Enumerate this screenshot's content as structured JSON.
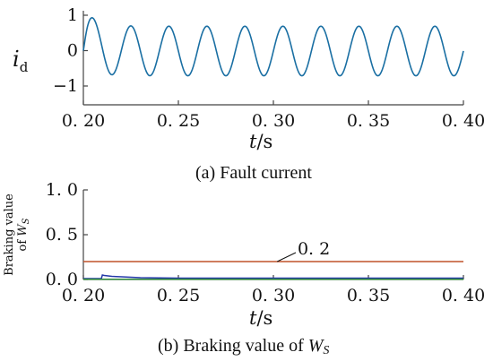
{
  "chart_data": [
    {
      "type": "line",
      "caption": "(a) Fault current",
      "xlabel_var": "t",
      "xlabel_unit": "/s",
      "ylabel_main": "i",
      "ylabel_sub": "d",
      "xlim": [
        0.2,
        0.4
      ],
      "ylim": [
        -1,
        1
      ],
      "xticks": [
        0.2,
        0.25,
        0.3,
        0.35,
        0.4
      ],
      "xtick_labels": [
        "0. 20",
        "0. 25",
        "0. 30",
        "0. 35",
        "0. 40"
      ],
      "yticks": [
        -1,
        0,
        1
      ],
      "ytick_labels": [
        "−1",
        "0",
        "1"
      ],
      "series": [
        {
          "color": "#1a6fa3",
          "frequency_hz": 50,
          "start_x": 0.2,
          "phase_deg": -90,
          "dc_offset_initial": 0.55,
          "dc_decay_tau_s": 0.007,
          "dc_offset_final": -0.02,
          "amplitude_ac": 0.7,
          "peaks": [
            {
              "x": 0.209,
              "y": 1.0
            },
            {
              "x": 0.229,
              "y": 0.75
            },
            {
              "x": 0.249,
              "y": 0.72
            },
            {
              "x": 0.269,
              "y": 0.7
            },
            {
              "x": 0.289,
              "y": 0.7
            },
            {
              "x": 0.309,
              "y": 0.7
            },
            {
              "x": 0.329,
              "y": 0.7
            },
            {
              "x": 0.349,
              "y": 0.7
            },
            {
              "x": 0.369,
              "y": 0.7
            },
            {
              "x": 0.389,
              "y": 0.7
            }
          ],
          "troughs": [
            {
              "x": 0.219,
              "y": -0.5
            },
            {
              "x": 0.239,
              "y": -0.65
            },
            {
              "x": 0.259,
              "y": -0.68
            },
            {
              "x": 0.279,
              "y": -0.7
            },
            {
              "x": 0.299,
              "y": -0.7
            },
            {
              "x": 0.319,
              "y": -0.7
            },
            {
              "x": 0.339,
              "y": -0.7
            },
            {
              "x": 0.359,
              "y": -0.7
            },
            {
              "x": 0.379,
              "y": -0.7
            },
            {
              "x": 0.399,
              "y": -0.7
            }
          ]
        }
      ]
    },
    {
      "type": "line",
      "caption_prefix": "(b) Braking value of ",
      "caption_var": "W",
      "caption_sub": "S",
      "xlabel_var": "t",
      "xlabel_unit": "/s",
      "ylabel_line1": "Braking value",
      "ylabel_line2_prefix": "of ",
      "ylabel_var": "W",
      "ylabel_sub": "S",
      "xlim": [
        0.2,
        0.4
      ],
      "ylim": [
        0,
        1.0
      ],
      "xticks": [
        0.2,
        0.25,
        0.3,
        0.35,
        0.4
      ],
      "xtick_labels": [
        "0. 20",
        "0. 25",
        "0. 30",
        "0. 35",
        "0. 40"
      ],
      "yticks": [
        0,
        0.5,
        1.0
      ],
      "ytick_labels": [
        "0. 0",
        "0. 5",
        "1. 0"
      ],
      "annotation": {
        "text": "0. 2",
        "x": 0.308,
        "y": 0.26,
        "point_x": 0.302,
        "point_y": 0.2
      },
      "series": [
        {
          "role": "threshold",
          "color": "#c0522a",
          "x": [
            0.2,
            0.4
          ],
          "y": [
            0.2,
            0.2
          ]
        },
        {
          "role": "braking-value",
          "color": "#2338a8",
          "x": [
            0.2,
            0.2095,
            0.21,
            0.211,
            0.215,
            0.22,
            0.23,
            0.25,
            0.3,
            0.4
          ],
          "y": [
            0.01,
            0.01,
            0.05,
            0.045,
            0.035,
            0.03,
            0.02,
            0.015,
            0.015,
            0.015
          ]
        },
        {
          "role": "secondary",
          "color": "#2e8b3a",
          "x": [
            0.2,
            0.21,
            0.22,
            0.3,
            0.4
          ],
          "y": [
            0.003,
            0.003,
            0.002,
            0.002,
            0.002
          ]
        }
      ]
    }
  ]
}
